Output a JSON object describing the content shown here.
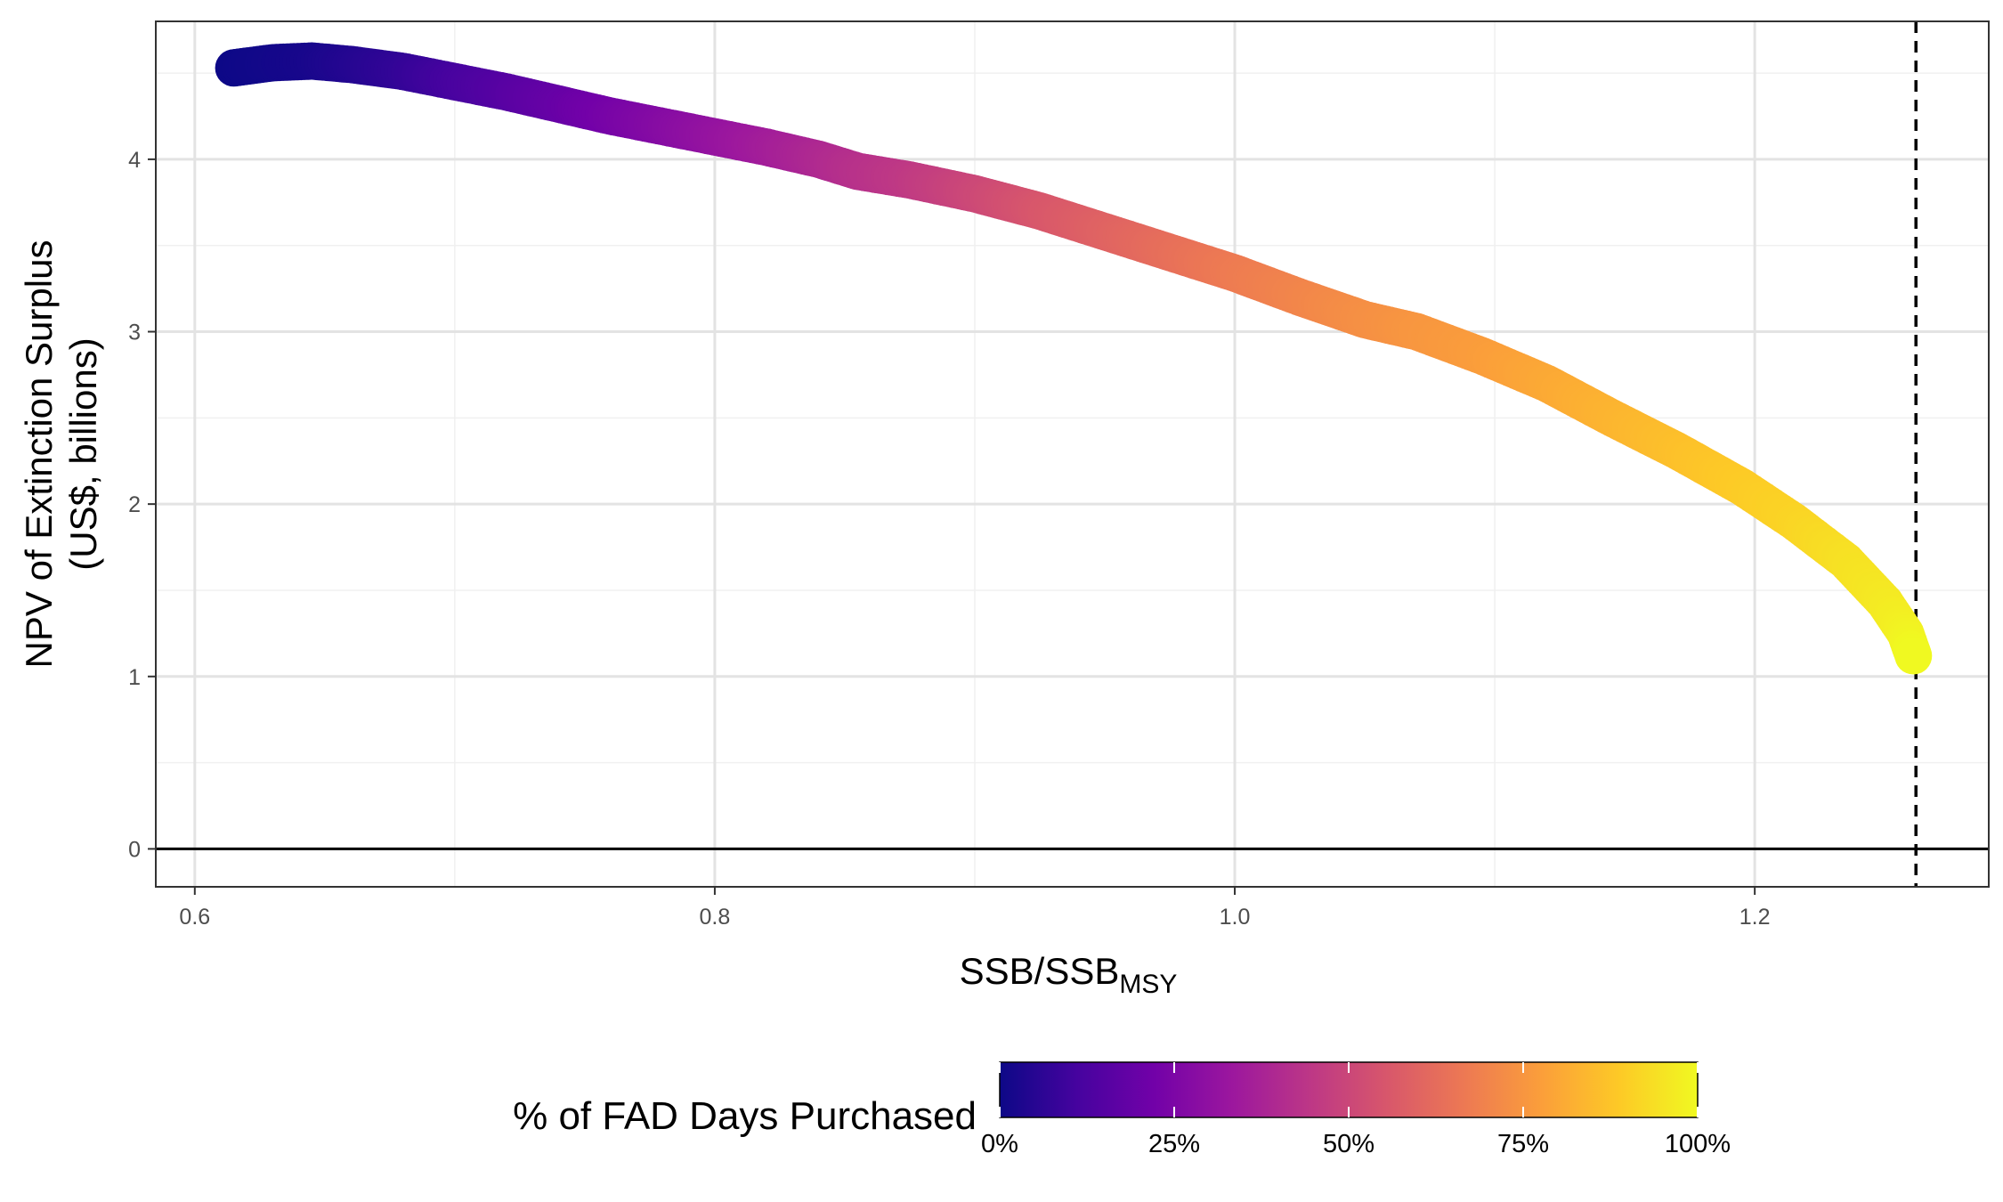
{
  "chart_data": {
    "type": "scatter",
    "title": "",
    "xlabel": "SSB/SSB",
    "xlabel_subscript": "MSY",
    "ylabel_line1": "NPV of Extinction Surplus",
    "ylabel_line2": "(US$, billions)",
    "xlim": [
      0.585,
      1.29
    ],
    "ylim": [
      -0.22,
      4.8
    ],
    "x_ticks": [
      0.6,
      0.8,
      1.0,
      1.2
    ],
    "x_tick_labels": [
      "0.6",
      "0.8",
      "1.0",
      "1.2"
    ],
    "y_ticks": [
      0,
      1,
      2,
      3,
      4
    ],
    "y_tick_labels": [
      "0",
      "1",
      "2",
      "3",
      "4"
    ],
    "x_minor_ticks": [
      0.7,
      0.9,
      1.1
    ],
    "y_minor_ticks": [
      0.5,
      1.5,
      2.5,
      3.5,
      4.5
    ],
    "grid": true,
    "hline": 0,
    "vline": 1.262,
    "color_variable": "% of FAD Days Purchased",
    "colormap": "plasma",
    "points": [
      {
        "x": 0.615,
        "y": 4.53,
        "c": 0
      },
      {
        "x": 0.63,
        "y": 4.56,
        "c": 0.01
      },
      {
        "x": 0.645,
        "y": 4.57,
        "c": 0.02
      },
      {
        "x": 0.66,
        "y": 4.55,
        "c": 0.04
      },
      {
        "x": 0.68,
        "y": 4.51,
        "c": 0.07
      },
      {
        "x": 0.7,
        "y": 4.45,
        "c": 0.11
      },
      {
        "x": 0.72,
        "y": 4.39,
        "c": 0.15
      },
      {
        "x": 0.74,
        "y": 4.32,
        "c": 0.19
      },
      {
        "x": 0.76,
        "y": 4.25,
        "c": 0.23
      },
      {
        "x": 0.78,
        "y": 4.19,
        "c": 0.27
      },
      {
        "x": 0.8,
        "y": 4.13,
        "c": 0.31
      },
      {
        "x": 0.82,
        "y": 4.07,
        "c": 0.35
      },
      {
        "x": 0.84,
        "y": 4.0,
        "c": 0.39
      },
      {
        "x": 0.855,
        "y": 3.93,
        "c": 0.42
      },
      {
        "x": 0.875,
        "y": 3.88,
        "c": 0.45
      },
      {
        "x": 0.9,
        "y": 3.8,
        "c": 0.5
      },
      {
        "x": 0.925,
        "y": 3.7,
        "c": 0.55
      },
      {
        "x": 0.95,
        "y": 3.58,
        "c": 0.59
      },
      {
        "x": 0.975,
        "y": 3.46,
        "c": 0.63
      },
      {
        "x": 1.0,
        "y": 3.34,
        "c": 0.67
      },
      {
        "x": 1.025,
        "y": 3.2,
        "c": 0.7
      },
      {
        "x": 1.05,
        "y": 3.07,
        "c": 0.73
      },
      {
        "x": 1.07,
        "y": 3.0,
        "c": 0.75
      },
      {
        "x": 1.095,
        "y": 2.86,
        "c": 0.77
      },
      {
        "x": 1.12,
        "y": 2.7,
        "c": 0.8
      },
      {
        "x": 1.145,
        "y": 2.5,
        "c": 0.83
      },
      {
        "x": 1.17,
        "y": 2.31,
        "c": 0.86
      },
      {
        "x": 1.195,
        "y": 2.1,
        "c": 0.89
      },
      {
        "x": 1.215,
        "y": 1.9,
        "c": 0.91
      },
      {
        "x": 1.235,
        "y": 1.67,
        "c": 0.94
      },
      {
        "x": 1.25,
        "y": 1.43,
        "c": 0.96
      },
      {
        "x": 1.258,
        "y": 1.25,
        "c": 0.98
      },
      {
        "x": 1.261,
        "y": 1.12,
        "c": 1.0
      }
    ],
    "legend": {
      "title": "% of FAD Days Purchased",
      "placement": "bottom",
      "breaks": [
        0,
        0.25,
        0.5,
        0.75,
        1.0
      ],
      "labels": [
        "0%",
        "25%",
        "50%",
        "75%",
        "100%"
      ]
    }
  }
}
